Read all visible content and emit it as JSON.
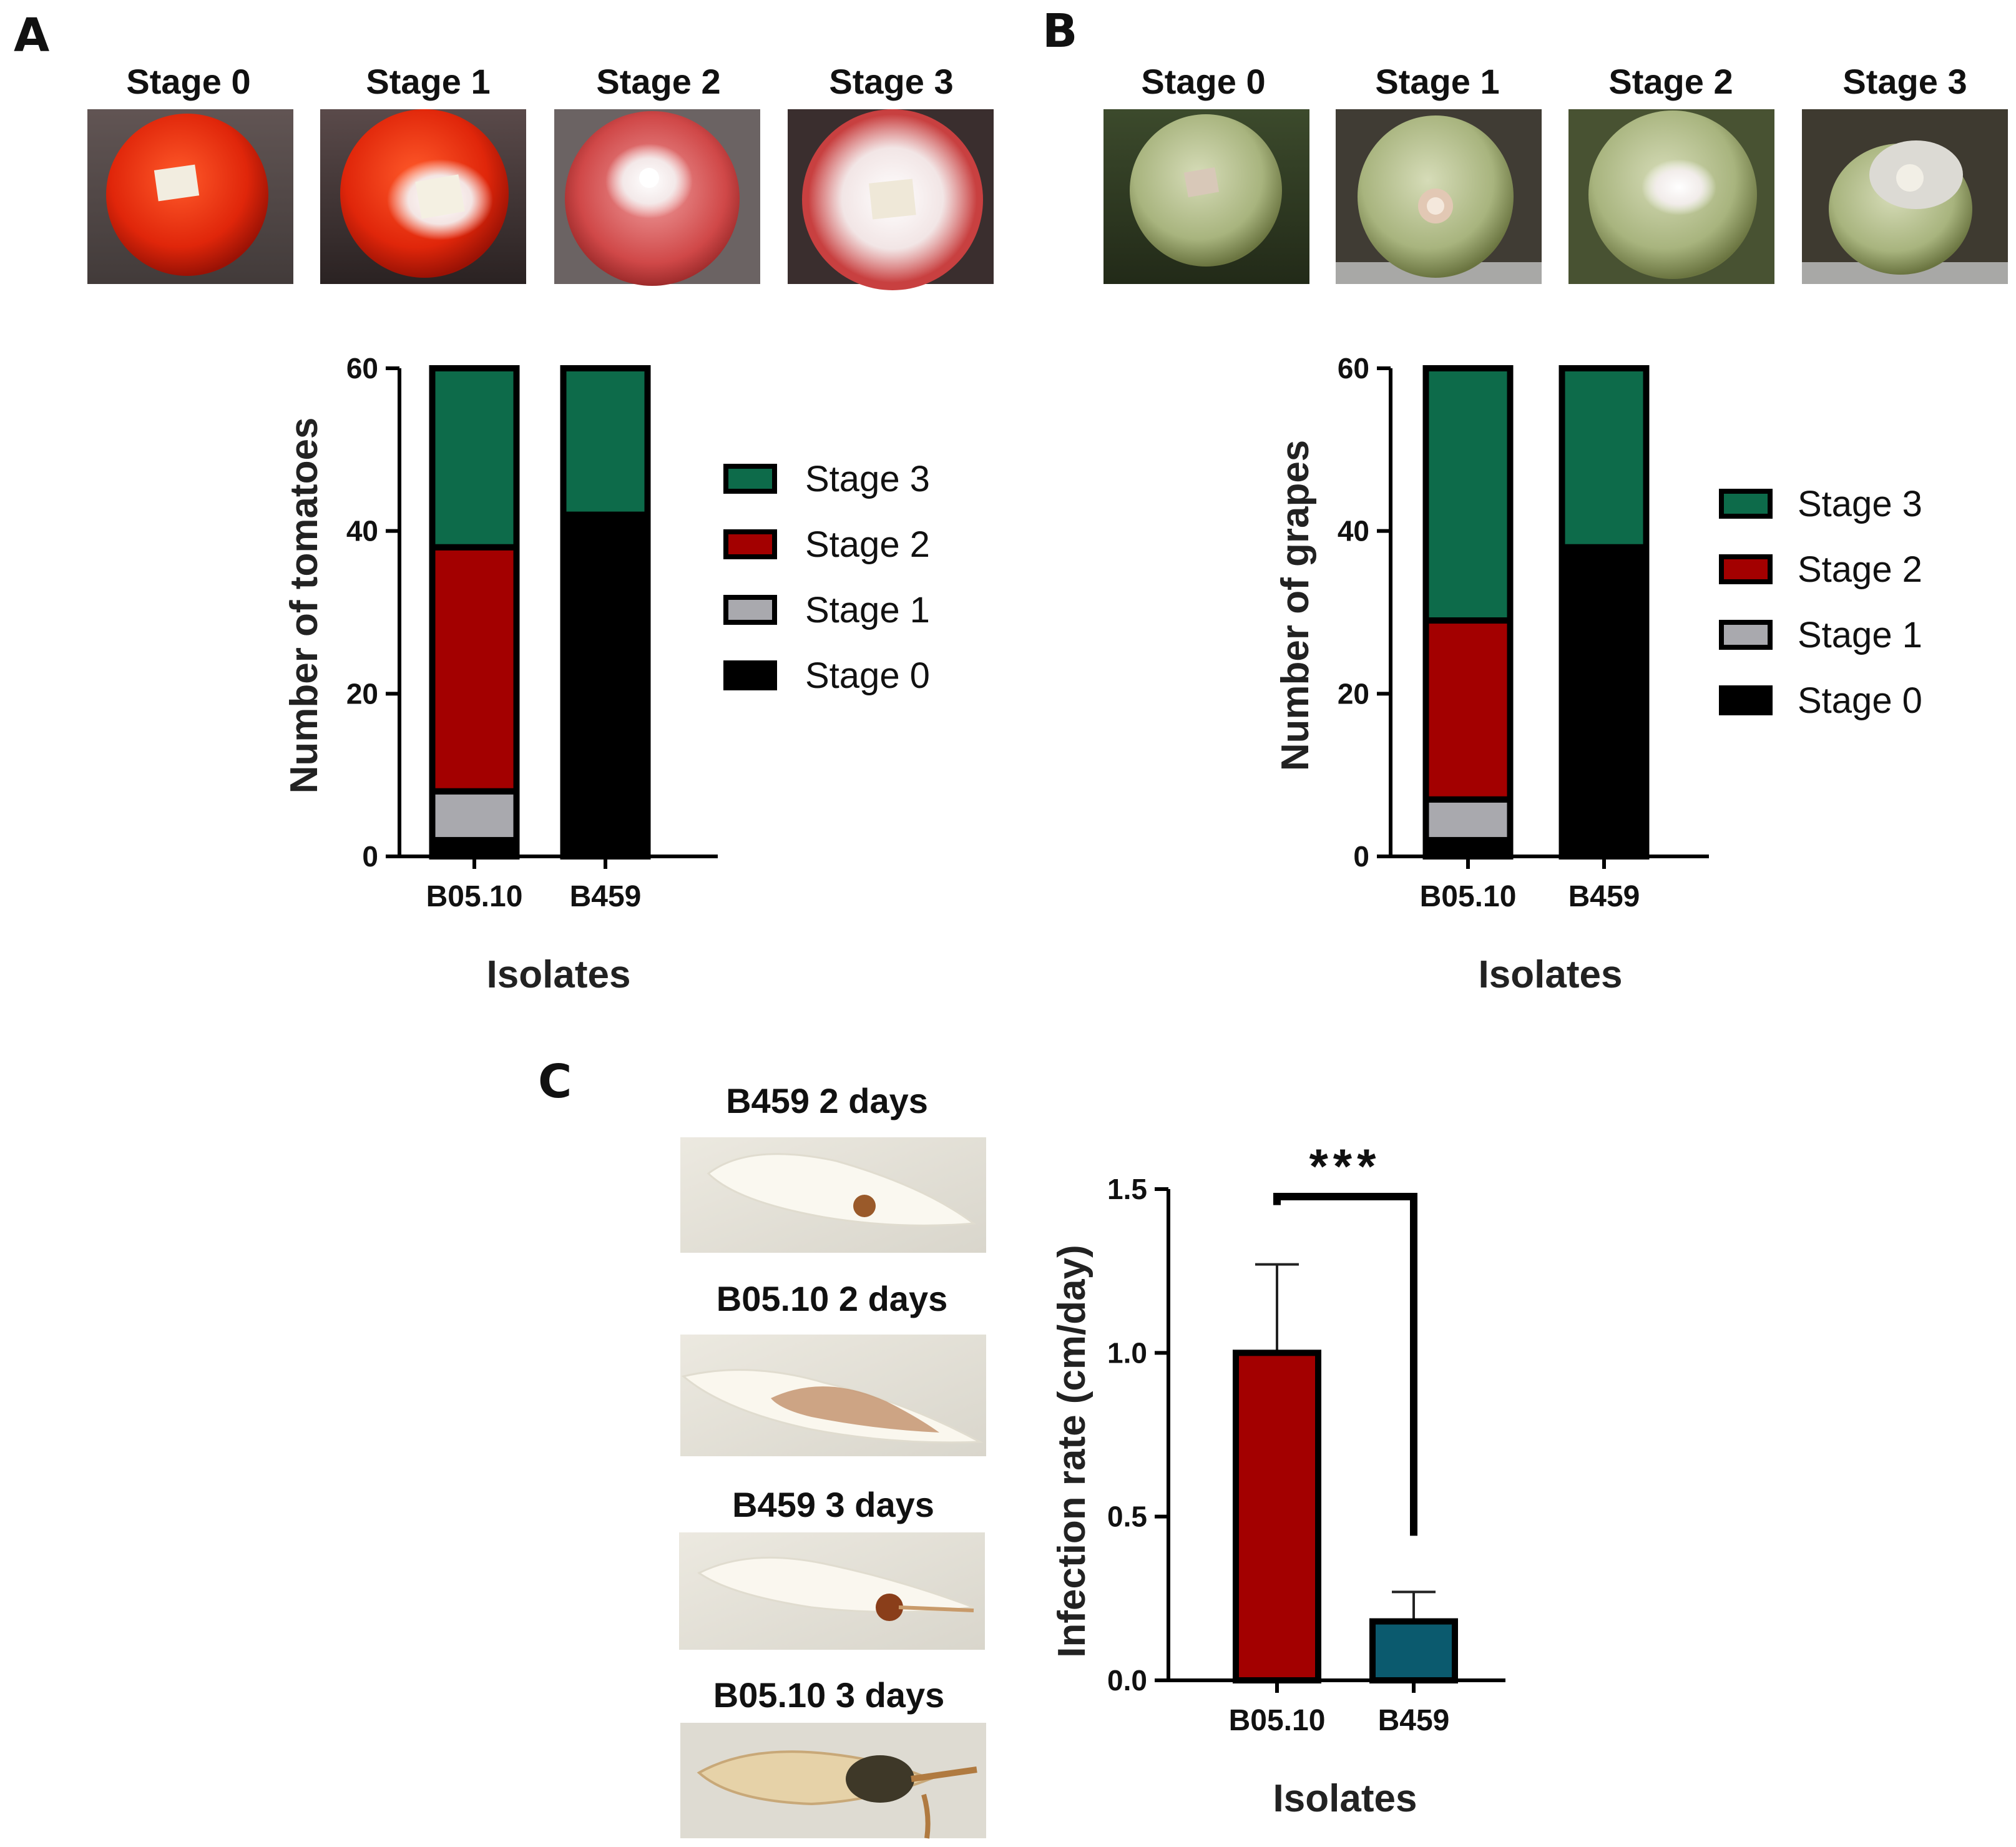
{
  "colors": {
    "stage3": "#0d6b4a",
    "stage2": "#a30000",
    "stage1": "#a9a9ae",
    "stage0": "#000000",
    "b459_bar": "#0b5a6e",
    "b0510_bar": "#a30000"
  },
  "panel_a": {
    "letter": "A",
    "photo_labels": [
      "Stage 0",
      "Stage 1",
      "Stage 2",
      "Stage 3"
    ]
  },
  "panel_b": {
    "letter": "B",
    "photo_labels": [
      "Stage 0",
      "Stage 1",
      "Stage 2",
      "Stage 3"
    ]
  },
  "panel_c": {
    "letter": "C",
    "photo_labels": [
      "B459 2 days",
      "B05.10 2 days",
      "B459 3 days",
      "B05.10 3 days"
    ],
    "significance": "***"
  },
  "chart_data": [
    {
      "id": "tomatoes",
      "type": "bar",
      "stacked": true,
      "categories": [
        "B05.10",
        "B459"
      ],
      "series": [
        {
          "name": "Stage 0",
          "color_key": "stage0",
          "values": [
            2,
            42
          ]
        },
        {
          "name": "Stage 1",
          "color_key": "stage1",
          "values": [
            6,
            0
          ]
        },
        {
          "name": "Stage 2",
          "color_key": "stage2",
          "values": [
            30,
            0
          ]
        },
        {
          "name": "Stage 3",
          "color_key": "stage3",
          "values": [
            22,
            18
          ]
        }
      ],
      "legend": [
        "Stage 3",
        "Stage 2",
        "Stage 1",
        "Stage 0"
      ],
      "xlabel": "Isolates",
      "ylabel": "Number of tomatoes",
      "ylim": [
        0,
        60
      ],
      "yticks": [
        "0",
        "20",
        "40",
        "60"
      ]
    },
    {
      "id": "grapes",
      "type": "bar",
      "stacked": true,
      "categories": [
        "B05.10",
        "B459"
      ],
      "series": [
        {
          "name": "Stage 0",
          "color_key": "stage0",
          "values": [
            2,
            38
          ]
        },
        {
          "name": "Stage 1",
          "color_key": "stage1",
          "values": [
            5,
            0
          ]
        },
        {
          "name": "Stage 2",
          "color_key": "stage2",
          "values": [
            22,
            0
          ]
        },
        {
          "name": "Stage 3",
          "color_key": "stage3",
          "values": [
            31,
            22
          ]
        }
      ],
      "legend": [
        "Stage 3",
        "Stage 2",
        "Stage 1",
        "Stage 0"
      ],
      "xlabel": "Isolates",
      "ylabel": "Number of grapes",
      "ylim": [
        0,
        60
      ],
      "yticks": [
        "0",
        "20",
        "40",
        "60"
      ]
    },
    {
      "id": "infection",
      "type": "bar",
      "categories": [
        "B05.10",
        "B459"
      ],
      "values": [
        1.0,
        0.18
      ],
      "errors": [
        0.27,
        0.09
      ],
      "bar_color_keys": [
        "b0510_bar",
        "b459_bar"
      ],
      "xlabel": "Isolates",
      "ylabel": "Infection rate (cm/day)",
      "ylim": [
        0,
        1.5
      ],
      "yticks": [
        "0.0",
        "0.5",
        "1.0",
        "1.5"
      ]
    }
  ]
}
